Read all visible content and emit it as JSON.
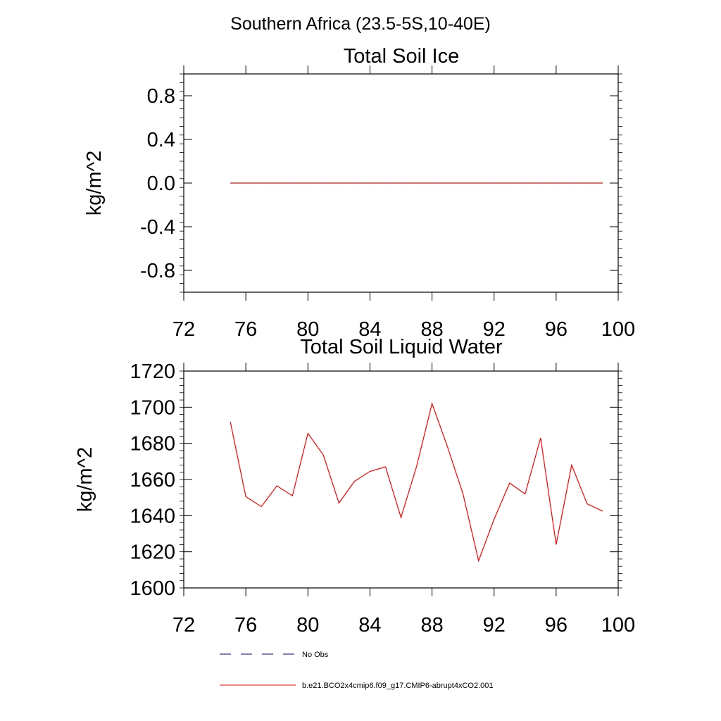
{
  "page_title": "Southern Africa (23.5-5S,10-40E)",
  "chart_data": [
    {
      "type": "line",
      "title": "Total Soil Ice",
      "xlabel": "",
      "ylabel": "kg/m^2",
      "xlim": [
        72,
        100
      ],
      "ylim": [
        -1.0,
        1.0
      ],
      "xticks": [
        "72",
        "76",
        "80",
        "84",
        "88",
        "92",
        "96",
        "100"
      ],
      "yticks": [
        "-0.8",
        "-0.4",
        "0.0",
        "0.4",
        "0.8"
      ],
      "x": [
        75,
        76,
        77,
        78,
        79,
        80,
        81,
        82,
        83,
        84,
        85,
        86,
        87,
        88,
        89,
        90,
        91,
        92,
        93,
        94,
        95,
        96,
        97,
        98,
        99
      ],
      "series": [
        {
          "name": "b.e21.BCO2x4cmip6.f09_g17.CMIP6-abrupt4xCO2.001",
          "color": "#ff0000",
          "values": [
            0,
            0,
            0,
            0,
            0,
            0,
            0,
            0,
            0,
            0,
            0,
            0,
            0,
            0,
            0,
            0,
            0,
            0,
            0,
            0,
            0,
            0,
            0,
            0,
            0
          ]
        }
      ]
    },
    {
      "type": "line",
      "title": "Total Soil Liquid Water",
      "xlabel": "",
      "ylabel": "kg/m^2",
      "xlim": [
        72,
        100
      ],
      "ylim": [
        1600,
        1720
      ],
      "xticks": [
        "72",
        "76",
        "80",
        "84",
        "88",
        "92",
        "96",
        "100"
      ],
      "yticks": [
        "1600",
        "1620",
        "1640",
        "1660",
        "1680",
        "1700",
        "1720"
      ],
      "x": [
        75,
        76,
        77,
        78,
        79,
        80,
        81,
        82,
        83,
        84,
        85,
        86,
        87,
        88,
        89,
        90,
        91,
        92,
        93,
        94,
        95,
        96,
        97,
        98,
        99
      ],
      "series": [
        {
          "name": "b.e21.BCO2x4cmip6.f09_g17.CMIP6-abrupt4xCO2.001",
          "color": "#ff0000",
          "values": [
            1692,
            1650.5,
            1645,
            1656.5,
            1651,
            1685.5,
            1673.5,
            1647,
            1659,
            1664.5,
            1667,
            1639,
            1667,
            1702,
            1678,
            1652,
            1615,
            1638,
            1658,
            1652,
            1683,
            1624,
            1668,
            1646.5,
            1642.5
          ]
        }
      ]
    }
  ],
  "legend": {
    "items": [
      {
        "label": "No Obs",
        "style": "dashed",
        "color": "#000080"
      },
      {
        "label": "b.e21.BCO2x4cmip6.f09_g17.CMIP6-abrupt4xCO2.001",
        "style": "solid",
        "color": "#ff0000"
      }
    ]
  }
}
